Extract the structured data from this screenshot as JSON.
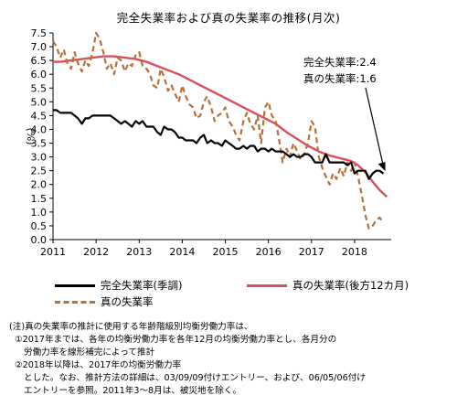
{
  "chart_data": {
    "type": "line",
    "title": "完全失業率および真の失業率の推移(月次)",
    "ylabel": "(%)",
    "ylim": [
      0.0,
      7.5
    ],
    "y_ticks": [
      "0.0",
      "0.5",
      "1.0",
      "1.5",
      "2.0",
      "2.5",
      "3.0",
      "3.5",
      "4.0",
      "4.5",
      "5.0",
      "5.5",
      "6.0",
      "6.5",
      "7.0",
      "7.5"
    ],
    "x_ticks": [
      "2011",
      "2012",
      "2013",
      "2014",
      "2015",
      "2016",
      "2017",
      "2018"
    ],
    "xlim": [
      2011.0,
      2018.85
    ],
    "grid": false,
    "legend_position": "bottom",
    "series": [
      {
        "name": "完全失業率(季調)",
        "color": "#000000",
        "style": "solid",
        "points": [
          [
            2011.0,
            4.7
          ],
          [
            2011.08,
            4.7
          ],
          [
            2011.17,
            4.6
          ],
          [
            2011.25,
            4.6
          ],
          [
            2011.33,
            4.6
          ],
          [
            2011.42,
            4.6
          ],
          [
            2011.5,
            4.5
          ],
          [
            2011.58,
            4.4
          ],
          [
            2011.67,
            4.2
          ],
          [
            2011.75,
            4.4
          ],
          [
            2011.83,
            4.4
          ],
          [
            2011.92,
            4.5
          ],
          [
            2012.0,
            4.5
          ],
          [
            2012.08,
            4.5
          ],
          [
            2012.17,
            4.5
          ],
          [
            2012.25,
            4.5
          ],
          [
            2012.33,
            4.5
          ],
          [
            2012.42,
            4.4
          ],
          [
            2012.5,
            4.3
          ],
          [
            2012.58,
            4.2
          ],
          [
            2012.67,
            4.3
          ],
          [
            2012.75,
            4.2
          ],
          [
            2012.83,
            4.1
          ],
          [
            2012.92,
            4.3
          ],
          [
            2013.0,
            4.2
          ],
          [
            2013.08,
            4.3
          ],
          [
            2013.17,
            4.1
          ],
          [
            2013.25,
            4.1
          ],
          [
            2013.33,
            4.1
          ],
          [
            2013.42,
            3.9
          ],
          [
            2013.5,
            3.8
          ],
          [
            2013.58,
            4.1
          ],
          [
            2013.67,
            4.0
          ],
          [
            2013.75,
            4.0
          ],
          [
            2013.83,
            3.9
          ],
          [
            2013.92,
            3.7
          ],
          [
            2014.0,
            3.7
          ],
          [
            2014.08,
            3.6
          ],
          [
            2014.17,
            3.6
          ],
          [
            2014.25,
            3.6
          ],
          [
            2014.33,
            3.5
          ],
          [
            2014.42,
            3.7
          ],
          [
            2014.5,
            3.8
          ],
          [
            2014.58,
            3.5
          ],
          [
            2014.67,
            3.6
          ],
          [
            2014.75,
            3.5
          ],
          [
            2014.83,
            3.5
          ],
          [
            2014.92,
            3.4
          ],
          [
            2015.0,
            3.6
          ],
          [
            2015.08,
            3.5
          ],
          [
            2015.17,
            3.4
          ],
          [
            2015.25,
            3.3
          ],
          [
            2015.33,
            3.3
          ],
          [
            2015.42,
            3.4
          ],
          [
            2015.5,
            3.3
          ],
          [
            2015.58,
            3.4
          ],
          [
            2015.67,
            3.4
          ],
          [
            2015.75,
            3.2
          ],
          [
            2015.83,
            3.3
          ],
          [
            2015.92,
            3.3
          ],
          [
            2016.0,
            3.2
          ],
          [
            2016.08,
            3.3
          ],
          [
            2016.17,
            3.2
          ],
          [
            2016.25,
            3.2
          ],
          [
            2016.33,
            3.2
          ],
          [
            2016.42,
            3.1
          ],
          [
            2016.5,
            3.0
          ],
          [
            2016.58,
            3.1
          ],
          [
            2016.67,
            3.0
          ],
          [
            2016.75,
            3.0
          ],
          [
            2016.83,
            3.1
          ],
          [
            2016.92,
            3.1
          ],
          [
            2017.0,
            3.0
          ],
          [
            2017.08,
            2.8
          ],
          [
            2017.17,
            2.8
          ],
          [
            2017.25,
            2.8
          ],
          [
            2017.33,
            3.1
          ],
          [
            2017.42,
            2.8
          ],
          [
            2017.5,
            2.8
          ],
          [
            2017.58,
            2.8
          ],
          [
            2017.67,
            2.8
          ],
          [
            2017.75,
            2.8
          ],
          [
            2017.83,
            2.7
          ],
          [
            2017.92,
            2.8
          ],
          [
            2018.0,
            2.4
          ],
          [
            2018.08,
            2.5
          ],
          [
            2018.17,
            2.5
          ],
          [
            2018.25,
            2.5
          ],
          [
            2018.33,
            2.2
          ],
          [
            2018.42,
            2.4
          ],
          [
            2018.5,
            2.5
          ],
          [
            2018.58,
            2.5
          ],
          [
            2018.67,
            2.4
          ]
        ]
      },
      {
        "name": "真の失業率(後方12カ月)",
        "color": "#d9505a",
        "style": "solid",
        "points": [
          [
            2011.0,
            6.45
          ],
          [
            2011.17,
            6.45
          ],
          [
            2011.42,
            6.5
          ],
          [
            2011.67,
            6.55
          ],
          [
            2011.92,
            6.6
          ],
          [
            2012.17,
            6.65
          ],
          [
            2012.42,
            6.65
          ],
          [
            2012.67,
            6.6
          ],
          [
            2012.92,
            6.55
          ],
          [
            2013.17,
            6.45
          ],
          [
            2013.42,
            6.3
          ],
          [
            2013.67,
            6.15
          ],
          [
            2013.92,
            6.0
          ],
          [
            2014.17,
            5.8
          ],
          [
            2014.42,
            5.6
          ],
          [
            2014.67,
            5.4
          ],
          [
            2014.92,
            5.2
          ],
          [
            2015.17,
            5.0
          ],
          [
            2015.42,
            4.8
          ],
          [
            2015.67,
            4.6
          ],
          [
            2015.92,
            4.4
          ],
          [
            2016.17,
            4.2
          ],
          [
            2016.42,
            3.9
          ],
          [
            2016.67,
            3.65
          ],
          [
            2016.92,
            3.4
          ],
          [
            2017.17,
            3.2
          ],
          [
            2017.42,
            3.05
          ],
          [
            2017.67,
            2.95
          ],
          [
            2017.92,
            2.85
          ],
          [
            2018.08,
            2.7
          ],
          [
            2018.25,
            2.45
          ],
          [
            2018.42,
            2.1
          ],
          [
            2018.58,
            1.8
          ],
          [
            2018.75,
            1.55
          ]
        ]
      },
      {
        "name": "真の失業率",
        "color": "#b8703a",
        "style": "dashed",
        "points": [
          [
            2011.0,
            7.2
          ],
          [
            2011.08,
            7.0
          ],
          [
            2011.17,
            6.6
          ],
          [
            2011.25,
            6.9
          ],
          [
            2011.33,
            6.4
          ],
          [
            2011.42,
            6.2
          ],
          [
            2011.5,
            6.8
          ],
          [
            2011.58,
            6.4
          ],
          [
            2011.67,
            6.1
          ],
          [
            2011.75,
            6.5
          ],
          [
            2011.83,
            6.3
          ],
          [
            2011.92,
            6.8
          ],
          [
            2012.0,
            7.5
          ],
          [
            2012.08,
            7.3
          ],
          [
            2012.17,
            6.8
          ],
          [
            2012.25,
            6.2
          ],
          [
            2012.33,
            6.4
          ],
          [
            2012.42,
            6.0
          ],
          [
            2012.5,
            6.6
          ],
          [
            2012.58,
            6.5
          ],
          [
            2012.67,
            6.1
          ],
          [
            2012.75,
            6.4
          ],
          [
            2012.83,
            6.3
          ],
          [
            2012.92,
            6.7
          ],
          [
            2013.0,
            6.8
          ],
          [
            2013.08,
            6.3
          ],
          [
            2013.17,
            6.2
          ],
          [
            2013.25,
            6.0
          ],
          [
            2013.33,
            5.6
          ],
          [
            2013.42,
            5.5
          ],
          [
            2013.5,
            6.2
          ],
          [
            2013.58,
            5.9
          ],
          [
            2013.67,
            5.4
          ],
          [
            2013.75,
            5.6
          ],
          [
            2013.83,
            5.3
          ],
          [
            2013.92,
            5.0
          ],
          [
            2014.0,
            5.6
          ],
          [
            2014.08,
            5.2
          ],
          [
            2014.17,
            4.9
          ],
          [
            2014.25,
            4.8
          ],
          [
            2014.33,
            4.4
          ],
          [
            2014.42,
            4.5
          ],
          [
            2014.5,
            5.0
          ],
          [
            2014.58,
            5.2
          ],
          [
            2014.67,
            4.8
          ],
          [
            2014.75,
            4.3
          ],
          [
            2014.83,
            4.5
          ],
          [
            2014.92,
            4.6
          ],
          [
            2015.0,
            4.8
          ],
          [
            2015.08,
            4.3
          ],
          [
            2015.17,
            4.1
          ],
          [
            2015.25,
            3.8
          ],
          [
            2015.33,
            3.6
          ],
          [
            2015.42,
            4.3
          ],
          [
            2015.5,
            4.6
          ],
          [
            2015.58,
            4.2
          ],
          [
            2015.67,
            4.0
          ],
          [
            2015.75,
            4.5
          ],
          [
            2015.83,
            3.5
          ],
          [
            2015.92,
            4.8
          ],
          [
            2016.0,
            5.0
          ],
          [
            2016.08,
            4.5
          ],
          [
            2016.17,
            4.3
          ],
          [
            2016.25,
            3.6
          ],
          [
            2016.33,
            2.8
          ],
          [
            2016.42,
            3.3
          ],
          [
            2016.5,
            3.0
          ],
          [
            2016.58,
            3.5
          ],
          [
            2016.67,
            3.2
          ],
          [
            2016.75,
            2.9
          ],
          [
            2016.83,
            3.1
          ],
          [
            2016.92,
            3.5
          ],
          [
            2017.0,
            4.3
          ],
          [
            2017.08,
            4.1
          ],
          [
            2017.17,
            3.0
          ],
          [
            2017.25,
            2.6
          ],
          [
            2017.33,
            2.3
          ],
          [
            2017.42,
            2.0
          ],
          [
            2017.5,
            2.4
          ],
          [
            2017.58,
            2.2
          ],
          [
            2017.67,
            2.6
          ],
          [
            2017.75,
            2.3
          ],
          [
            2017.83,
            2.8
          ],
          [
            2017.92,
            2.5
          ],
          [
            2018.0,
            2.8
          ],
          [
            2018.08,
            2.3
          ],
          [
            2018.17,
            1.6
          ],
          [
            2018.25,
            0.9
          ],
          [
            2018.33,
            0.4
          ],
          [
            2018.42,
            0.5
          ],
          [
            2018.5,
            0.7
          ],
          [
            2018.58,
            0.8
          ],
          [
            2018.67,
            0.6
          ]
        ]
      }
    ],
    "annotations": [
      {
        "text": "完全失業率:2.4"
      },
      {
        "text": "真の失業率:1.6"
      }
    ]
  },
  "notes": [
    "(注)真の失業率の推計に使用する年齢階級別均衡労働力率は、",
    "①2017年までは、各年の均衡労働力率を各年12月の均衡労働力率とし、各月分の",
    "労働力率を線形補完によって推計",
    "②2018年以降は、2017年の均衡労働力率",
    "とした。なお、推計方法の詳細は、03/09/09付けエントリー、および、06/05/06付け",
    "エントリーを参照。2011年3～8月は、被災地を除く。"
  ]
}
